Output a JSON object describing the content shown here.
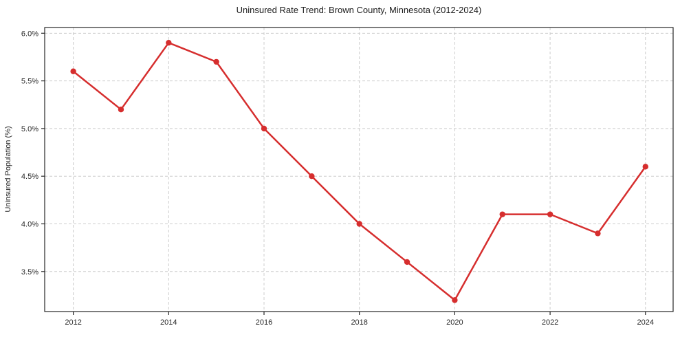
{
  "chart_data": {
    "type": "line",
    "title": "Uninsured Rate Trend: Brown County, Minnesota (2012-2024)",
    "xlabel": "",
    "ylabel": "Uninsured Population (%)",
    "x": [
      2012,
      2013,
      2014,
      2015,
      2016,
      2017,
      2018,
      2019,
      2020,
      2021,
      2022,
      2023,
      2024
    ],
    "values": [
      5.6,
      5.2,
      5.9,
      5.7,
      5.0,
      4.5,
      4.0,
      3.6,
      3.2,
      4.1,
      4.1,
      3.9,
      4.6
    ],
    "x_ticks": {
      "values": [
        2012,
        2014,
        2016,
        2018,
        2020,
        2022,
        2024
      ],
      "labels": [
        "2012",
        "2014",
        "2016",
        "2018",
        "2020",
        "2022",
        "2024"
      ]
    },
    "y_ticks": {
      "values": [
        3.5,
        4.0,
        4.5,
        5.0,
        5.5,
        6.0
      ],
      "labels": [
        "3.5%",
        "4.0%",
        "4.5%",
        "5.0%",
        "5.5%",
        "6.0%"
      ]
    },
    "xlim": [
      2011.4,
      2024.58
    ],
    "ylim": [
      3.08,
      6.06
    ],
    "grid": true,
    "grid_style": "dashed",
    "legend": "none",
    "line_color": "#d62e2e",
    "marker": "circle",
    "marker_radius": 4.2,
    "line_width": 2.5,
    "grid_color": "#cccccc",
    "axis_color": "#262626",
    "text_color": "#262626",
    "background": "#ffffff"
  }
}
